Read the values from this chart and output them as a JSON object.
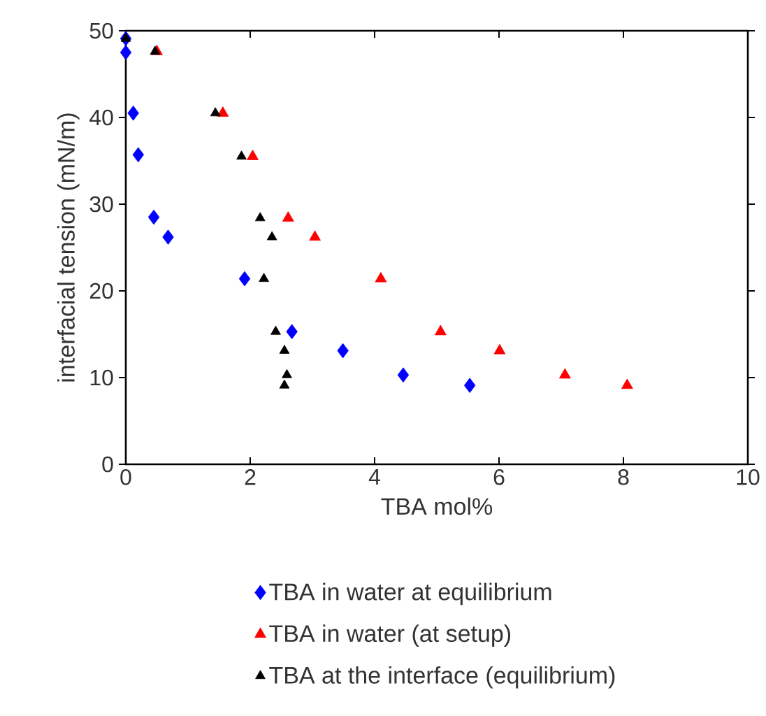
{
  "chart_data": {
    "type": "scatter",
    "xlabel": "TBA mol%",
    "ylabel": "interfacial tension (mN/m)",
    "xlim": [
      0,
      10
    ],
    "ylim": [
      0,
      50
    ],
    "xticks": [
      0,
      2,
      4,
      6,
      8,
      10
    ],
    "yticks": [
      0,
      10,
      20,
      30,
      40,
      50
    ],
    "grid": false,
    "legend": "bottom",
    "series": [
      {
        "name": "TBA in water at equilibrium",
        "color": "#0000ff",
        "marker": "diamond",
        "x": [
          0,
          0,
          0.12,
          0.2,
          0.45,
          0.68,
          1.91,
          2.67,
          3.49,
          4.46,
          5.53
        ],
        "values": [
          49.1,
          47.5,
          40.5,
          35.7,
          28.5,
          26.2,
          21.4,
          15.3,
          13.1,
          10.3,
          9.1
        ]
      },
      {
        "name": "TBA in water (at setup)",
        "color": "#ff0000",
        "marker": "triangle",
        "x": [
          0.5,
          1.56,
          2.04,
          2.61,
          3.04,
          4.1,
          5.06,
          6.01,
          7.06,
          8.06
        ],
        "values": [
          47.6,
          40.5,
          35.5,
          28.4,
          26.2,
          21.4,
          15.3,
          13.1,
          10.3,
          9.1
        ]
      },
      {
        "name": "TBA at the interface (equilibrium)",
        "color": "#000000",
        "marker": "triangle",
        "x": [
          0,
          0.47,
          1.44,
          1.86,
          2.16,
          2.35,
          2.22,
          2.41,
          2.55,
          2.59,
          2.55
        ],
        "values": [
          49.1,
          47.6,
          40.5,
          35.5,
          28.4,
          26.2,
          21.4,
          15.3,
          13.1,
          10.3,
          9.1
        ]
      }
    ]
  }
}
